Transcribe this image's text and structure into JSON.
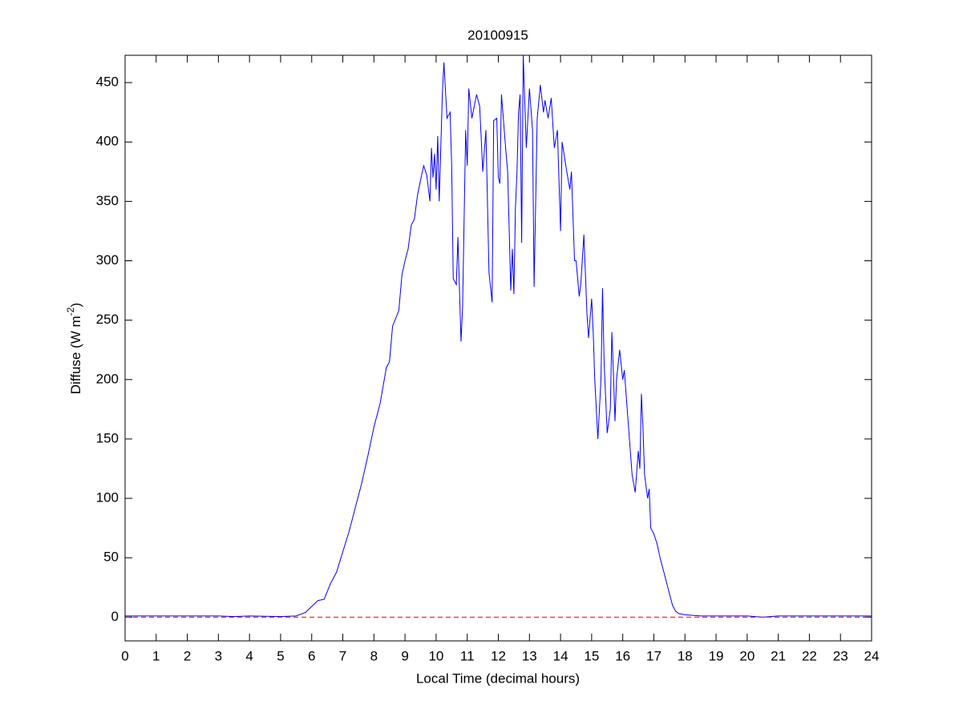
{
  "chart_data": {
    "type": "line",
    "title": "20100915",
    "xlabel": "Local Time (decimal hours)",
    "ylabel": [
      "Diffuse (W m",
      "-2",
      ")"
    ],
    "xlim": [
      0,
      24
    ],
    "xticks": [
      0,
      1,
      2,
      3,
      4,
      5,
      6,
      7,
      8,
      9,
      10,
      11,
      12,
      13,
      14,
      15,
      16,
      17,
      18,
      19,
      20,
      21,
      22,
      23,
      24
    ],
    "ylim": [
      -20,
      473
    ],
    "yticks": [
      0,
      50,
      100,
      150,
      200,
      250,
      300,
      350,
      400,
      450
    ],
    "series": [
      {
        "color": "#0000ff",
        "dash": false,
        "x": [
          0,
          1,
          2,
          3,
          3.5,
          4,
          5,
          5.5,
          5.8,
          6,
          6.2,
          6.4,
          6.6,
          6.8,
          7,
          7.2,
          7.4,
          7.6,
          7.8,
          8,
          8.2,
          8.4,
          8.5,
          8.6,
          8.8,
          8.9,
          9,
          9.1,
          9.2,
          9.3,
          9.4,
          9.5,
          9.6,
          9.7,
          9.8,
          9.85,
          9.9,
          9.95,
          10,
          10.05,
          10.1,
          10.2,
          10.25,
          10.35,
          10.45,
          10.5,
          10.55,
          10.65,
          10.7,
          10.8,
          10.85,
          10.95,
          11,
          11.05,
          11.15,
          11.3,
          11.4,
          11.5,
          11.6,
          11.7,
          11.8,
          11.85,
          11.95,
          12,
          12.05,
          12.1,
          12.25,
          12.3,
          12.4,
          12.45,
          12.5,
          12.55,
          12.6,
          12.65,
          12.7,
          12.75,
          12.8,
          12.9,
          13,
          13.1,
          13.15,
          13.25,
          13.35,
          13.45,
          13.5,
          13.6,
          13.7,
          13.8,
          13.9,
          14,
          14.05,
          14.2,
          14.3,
          14.35,
          14.45,
          14.5,
          14.6,
          14.65,
          14.75,
          14.85,
          14.9,
          15,
          15.05,
          15.1,
          15.2,
          15.3,
          15.35,
          15.4,
          15.5,
          15.6,
          15.65,
          15.7,
          15.75,
          15.8,
          15.9,
          16,
          16.05,
          16.2,
          16.3,
          16.4,
          16.5,
          16.55,
          16.6,
          16.65,
          16.7,
          16.8,
          16.85,
          16.9,
          17,
          17.1,
          17.2,
          17.3,
          17.4,
          17.5,
          17.6,
          17.7,
          17.8,
          18,
          18.5,
          19,
          20,
          20.5,
          21,
          22,
          23,
          24
        ],
        "values": [
          1,
          1,
          1,
          1,
          0.5,
          1,
          0.5,
          1,
          4,
          9,
          14,
          15,
          28,
          38,
          55,
          72,
          92,
          112,
          135,
          160,
          180,
          210,
          215,
          245,
          258,
          288,
          300,
          310,
          330,
          335,
          355,
          368,
          380,
          372,
          350,
          395,
          370,
          390,
          360,
          405,
          350,
          440,
          467,
          420,
          425,
          380,
          285,
          280,
          320,
          232,
          260,
          410,
          380,
          445,
          420,
          440,
          430,
          375,
          410,
          290,
          265,
          418,
          420,
          370,
          365,
          440,
          390,
          375,
          275,
          310,
          272,
          345,
          375,
          425,
          440,
          315,
          473,
          395,
          445,
          410,
          278,
          420,
          448,
          425,
          435,
          420,
          437,
          395,
          410,
          325,
          400,
          375,
          360,
          375,
          300,
          300,
          270,
          280,
          322,
          255,
          235,
          268,
          240,
          200,
          150,
          200,
          277,
          215,
          155,
          175,
          240,
          205,
          165,
          200,
          225,
          200,
          208,
          155,
          120,
          105,
          140,
          125,
          188,
          160,
          120,
          100,
          108,
          75,
          70,
          62,
          50,
          40,
          30,
          20,
          10,
          5,
          3,
          2,
          1,
          1,
          1,
          0,
          1,
          1,
          1,
          1
        ]
      },
      {
        "color": "#ff0000",
        "dash": true,
        "x": [
          0,
          24
        ],
        "values": [
          0,
          0
        ]
      }
    ]
  }
}
